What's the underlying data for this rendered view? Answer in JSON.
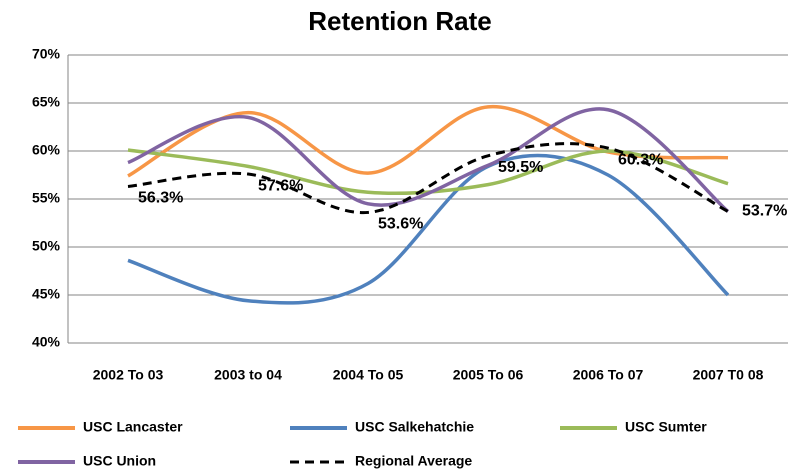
{
  "chart_data": {
    "type": "line",
    "title": "Retention Rate",
    "categories": [
      "2002 To 03",
      "2003 to 04",
      "2004 To 05",
      "2005 To 06",
      "2006 To 07",
      "2007 T0 08"
    ],
    "series": [
      {
        "name": "USC Lancaster",
        "color": "#f79646",
        "values": [
          57.4,
          64.0,
          57.7,
          64.6,
          59.9,
          59.3
        ]
      },
      {
        "name": "USC Salkehatchie",
        "color": "#4f81bd",
        "values": [
          48.6,
          44.4,
          46.2,
          58.4,
          57.5,
          45.0
        ]
      },
      {
        "name": "USC Sumter",
        "color": "#9bbb59",
        "values": [
          60.1,
          58.4,
          55.7,
          56.5,
          60.0,
          56.6
        ]
      },
      {
        "name": "USC Union",
        "color": "#8064a2",
        "values": [
          58.8,
          63.5,
          54.5,
          58.5,
          64.3,
          53.7
        ]
      },
      {
        "name": "Regional Average",
        "color": "#000000",
        "dashed": true,
        "values": [
          56.3,
          57.6,
          53.6,
          59.5,
          60.3,
          53.7
        ],
        "value_labels": [
          "56.3%",
          "57.6%",
          "53.6%",
          "59.5%",
          "60.3%",
          "53.7%"
        ]
      }
    ],
    "ylim": [
      40,
      70
    ],
    "yticks": [
      {
        "value": 40,
        "label": "40%"
      },
      {
        "value": 45,
        "label": "45%"
      },
      {
        "value": 50,
        "label": "50%"
      },
      {
        "value": 55,
        "label": "55%"
      },
      {
        "value": 60,
        "label": "60%"
      },
      {
        "value": 65,
        "label": "65%"
      },
      {
        "value": 70,
        "label": "70%"
      }
    ],
    "grid": true,
    "legend": "bottom"
  }
}
